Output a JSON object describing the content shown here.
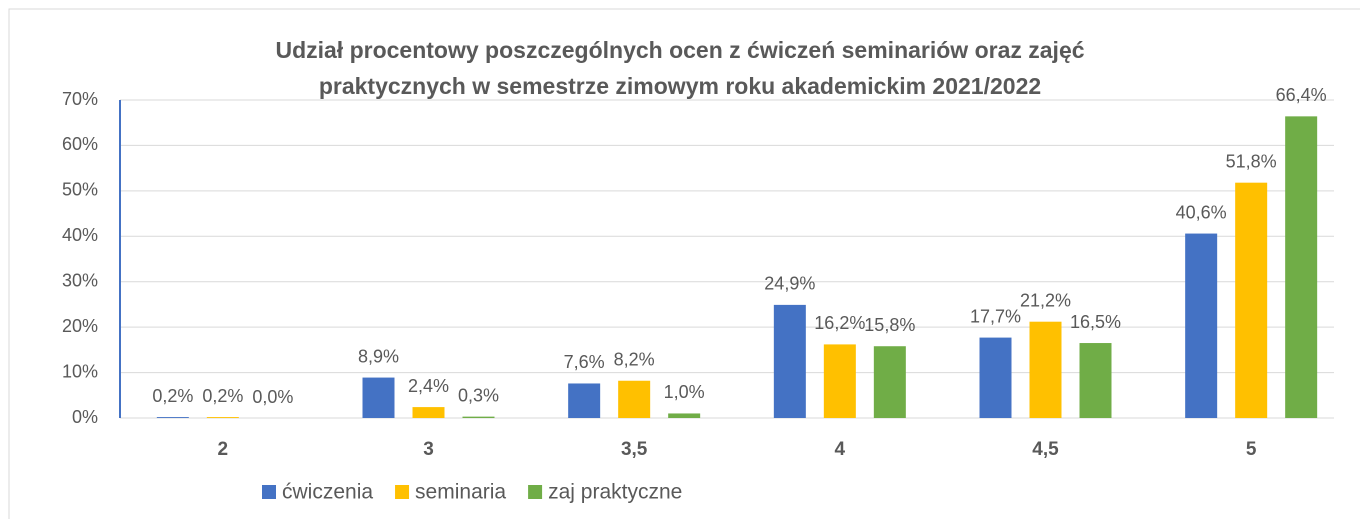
{
  "chart_data": {
    "type": "bar",
    "title": [
      "Udział procentowy poszczególnych ocen z ćwiczeń  seminariów oraz zajęć",
      "praktycznych w semestrze zimowym roku akademickim 2021/2022"
    ],
    "categories": [
      "2",
      "3",
      "3,5",
      "4",
      "4,5",
      "5"
    ],
    "series": [
      {
        "name": "ćwiczenia",
        "color": "#4472c4",
        "values": [
          0.2,
          8.9,
          7.6,
          24.9,
          17.7,
          40.6
        ],
        "value_labels": [
          "0,2%",
          "8,9%",
          "7,6%",
          "24,9%",
          "17,7%",
          "40,6%"
        ]
      },
      {
        "name": "seminaria",
        "color": "#ffc000",
        "values": [
          0.2,
          2.4,
          8.2,
          16.2,
          21.2,
          51.8
        ],
        "value_labels": [
          "0,2%",
          "2,4%",
          "8,2%",
          "16,2%",
          "21,2%",
          "51,8%"
        ]
      },
      {
        "name": "zaj praktyczne",
        "color": "#70ad47",
        "values": [
          0.0,
          0.3,
          1.0,
          15.8,
          16.5,
          66.4
        ],
        "value_labels": [
          "0,0%",
          "0,3%",
          "1,0%",
          "15,8%",
          "16,5%",
          "66,4%"
        ]
      }
    ],
    "ylim": [
      0,
      70
    ],
    "yticks": [
      {
        "value": 0,
        "label": "0%"
      },
      {
        "value": 10,
        "label": "10%"
      },
      {
        "value": 20,
        "label": "20%"
      },
      {
        "value": 30,
        "label": "30%"
      },
      {
        "value": 40,
        "label": "40%"
      },
      {
        "value": 50,
        "label": "50%"
      },
      {
        "value": 60,
        "label": "60%"
      },
      {
        "value": 70,
        "label": "70%"
      }
    ],
    "grid": true,
    "legend": "bottom"
  }
}
